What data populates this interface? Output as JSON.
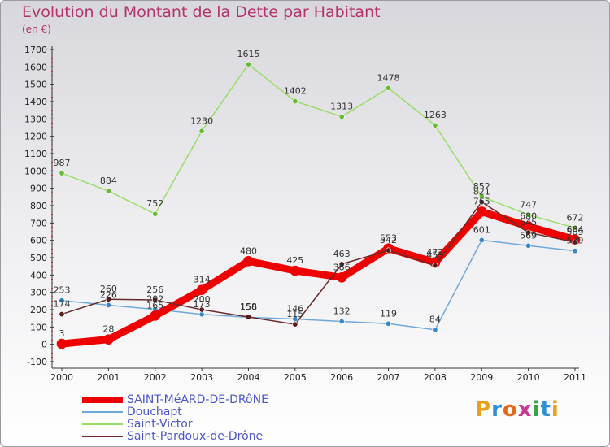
{
  "header": {
    "title": "Evolution du Montant de la Dette par Habitant",
    "subtitle": "(en €)"
  },
  "logo": {
    "text": "Proxiti",
    "colors": [
      "#e8a21a",
      "#2e8fd4",
      "#e06b1a",
      "#c93a8e",
      "#3aa346",
      "#2e8fd4",
      "#e8a21a"
    ]
  },
  "chart_data": {
    "type": "line",
    "x": [
      "2000",
      "2001",
      "2002",
      "2003",
      "2004",
      "2005",
      "2006",
      "2007",
      "2008",
      "2009",
      "2010",
      "2011"
    ],
    "ylim": [
      -100,
      1700
    ],
    "yticks": [
      "-100",
      "0",
      "100",
      "200",
      "300",
      "400",
      "500",
      "600",
      "700",
      "800",
      "900",
      "1000",
      "1100",
      "1200",
      "1300",
      "1400",
      "1500",
      "1600",
      "1700"
    ],
    "grid": false,
    "legend_position": "bottom-left",
    "series": [
      {
        "name": "SAINT-MéARD-DE-DRôNE",
        "color": "#ee0000",
        "dot": "#ee0000",
        "width": 9,
        "values": [
          3,
          28,
          165,
          314,
          480,
          425,
          386,
          553,
          472,
          765,
          680,
          604
        ],
        "labels": [
          "3",
          "28",
          "165",
          "314",
          "480",
          "425",
          "386",
          "553",
          "472",
          "765",
          "680",
          "604"
        ]
      },
      {
        "name": "Douchapt",
        "color": "#6fa8d8",
        "dot": "#3a86c8",
        "width": 1.5,
        "values": [
          253,
          226,
          202,
          173,
          156,
          146,
          132,
          119,
          84,
          601,
          569,
          539
        ],
        "labels": [
          "253",
          "226",
          "202",
          "173",
          "156",
          "146",
          "132",
          "119",
          "84",
          "601",
          "569",
          "539"
        ]
      },
      {
        "name": "Saint-Victor",
        "color": "#99dd66",
        "dot": "#66bb33",
        "width": 1.5,
        "values": [
          987,
          884,
          752,
          1230,
          1615,
          1402,
          1313,
          1478,
          1263,
          852,
          747,
          672
        ],
        "labels": [
          "987",
          "884",
          "752",
          "1230",
          "1615",
          "1402",
          "1313",
          "1478",
          "1263",
          "852",
          "747",
          "672"
        ]
      },
      {
        "name": "Saint-Pardoux-de-Drône",
        "color": "#6b2a2a",
        "dot": "#5a1a1a",
        "width": 1.5,
        "values": [
          174,
          260,
          256,
          200,
          158,
          115,
          463,
          542,
          455,
          821,
          645,
          589
        ],
        "labels": [
          "174",
          "260",
          "256",
          "200",
          "158",
          "115",
          "463",
          "542",
          "455",
          "821",
          "645",
          "589"
        ]
      }
    ]
  }
}
